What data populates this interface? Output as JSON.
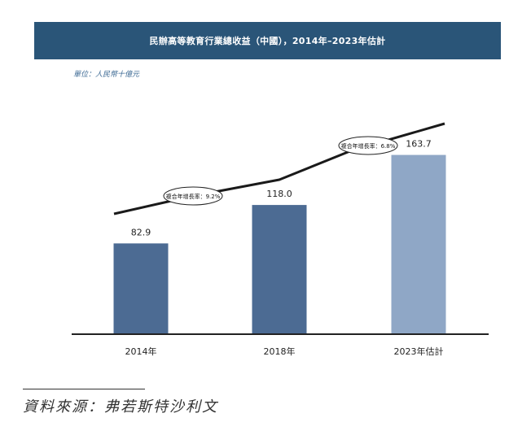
{
  "title": "民辦高等教育行業總收益（中國），2014年–2023年估計",
  "unit": "單位：人民幣十億元",
  "source": "資料來源：弗若斯特沙利文",
  "colors": {
    "header_bg": "#2a5578",
    "bar_actual": "#4c6b93",
    "bar_estimate": "#8fa7c6",
    "line": "#1a1a1a",
    "unit_text": "#3d6a94"
  },
  "chart_data": {
    "type": "bar",
    "title": "民辦高等教育行業總收益（中國），2014年–2023年估計",
    "ylabel": "人民幣十億元",
    "xlabel": "",
    "categories": [
      "2014年",
      "2018年",
      "2023年估計"
    ],
    "values": [
      82.9,
      118.0,
      163.7
    ],
    "value_labels": [
      "82.9",
      "118.0",
      "163.7"
    ],
    "estimate_flags": [
      false,
      false,
      true
    ],
    "ylim": [
      0,
      225
    ],
    "grid": false,
    "trend_annotations": [
      {
        "label": "複合年增長率：9.2%",
        "from": "2014年",
        "to": "2018年",
        "value": 9.2
      },
      {
        "label": "複合年增長率：6.8%",
        "from": "2018年",
        "to": "2023年估計",
        "value": 6.8
      }
    ]
  }
}
